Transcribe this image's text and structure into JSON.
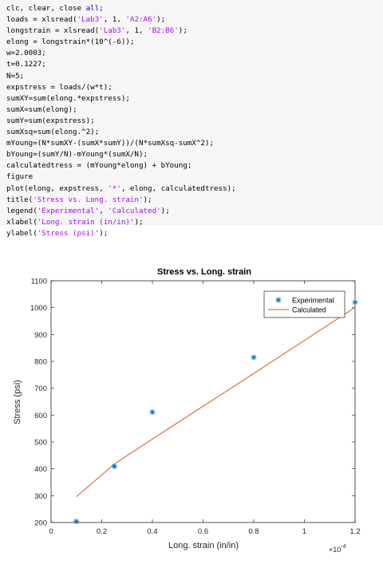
{
  "code": {
    "lines": [
      [
        {
          "t": "clc, clear, close "
        },
        {
          "t": "all",
          "c": "kw"
        },
        {
          "t": ";"
        }
      ],
      [
        {
          "t": "loads = xlsread("
        },
        {
          "t": "'Lab3'",
          "c": "str"
        },
        {
          "t": ", 1, "
        },
        {
          "t": "'A2:A6'",
          "c": "str"
        },
        {
          "t": ");"
        }
      ],
      [
        {
          "t": "longstrain = xlsread("
        },
        {
          "t": "'Lab3'",
          "c": "str"
        },
        {
          "t": ", 1, "
        },
        {
          "t": "'B2:B6'",
          "c": "str"
        },
        {
          "t": ");"
        }
      ],
      [
        {
          "t": "elong = longstrain*(10^(-6));"
        }
      ],
      [
        {
          "t": "w=2.0003;"
        }
      ],
      [
        {
          "t": "t=0.1227;"
        }
      ],
      [
        {
          "t": "N=5;"
        }
      ],
      [
        {
          "t": "expstress = loads/(w*t);"
        }
      ],
      [
        {
          "t": "sumXY=sum(elong.*expstress);"
        }
      ],
      [
        {
          "t": "sumX=sum(elong);"
        }
      ],
      [
        {
          "t": "sumY=sum(expstress);"
        }
      ],
      [
        {
          "t": "sumXsq=sum(elong.^2);"
        }
      ],
      [
        {
          "t": "mYoung=(N*sumXY-(sumX*sumY))/(N*sumXsq-sumX^2);"
        }
      ],
      [
        {
          "t": "bYoung=(sumY/N)-mYoung*(sumX/N);"
        }
      ],
      [
        {
          "t": "calculatedtress = (mYoung*elong) + bYoung;"
        }
      ],
      [
        {
          "t": "figure"
        }
      ],
      [
        {
          "t": "plot(elong, expstress, "
        },
        {
          "t": "'*'",
          "c": "str"
        },
        {
          "t": ", elong, calculatedtress);"
        }
      ],
      [
        {
          "t": "title("
        },
        {
          "t": "'Stress vs. Long. strain'",
          "c": "str"
        },
        {
          "t": ");"
        }
      ],
      [
        {
          "t": "legend("
        },
        {
          "t": "'Experimental'",
          "c": "str"
        },
        {
          "t": ", "
        },
        {
          "t": "'Calculated'",
          "c": "str"
        },
        {
          "t": ");"
        }
      ],
      [
        {
          "t": "xlabel("
        },
        {
          "t": "'Long. strain (in/in)'",
          "c": "str"
        },
        {
          "t": ");"
        }
      ],
      [
        {
          "t": "ylabel("
        },
        {
          "t": "'Stress (psi)'",
          "c": "str"
        },
        {
          "t": ");"
        }
      ]
    ],
    "colors": {
      "keyword": "#0000ff",
      "string": "#a709f5"
    }
  },
  "chart_data": {
    "type": "line",
    "title": "Stress vs. Long. strain",
    "xlabel": "Long. strain (in/in)",
    "ylabel": "Stress (psi)",
    "x_exponent_label": "×10",
    "x_exponent": "-4",
    "xlim": [
      0,
      0.00012
    ],
    "ylim": [
      200,
      1100
    ],
    "x_ticks": [
      0,
      2e-05,
      4e-05,
      6e-05,
      8e-05,
      0.0001,
      0.00012
    ],
    "x_tick_labels": [
      "0",
      "0.2",
      "0.4",
      "0.6",
      "0.8",
      "1",
      "1.2"
    ],
    "y_ticks": [
      200,
      300,
      400,
      500,
      600,
      700,
      800,
      900,
      1000,
      1100
    ],
    "y_tick_labels": [
      "200",
      "300",
      "400",
      "500",
      "600",
      "700",
      "800",
      "900",
      "1000",
      "1100"
    ],
    "grid": false,
    "legend_position": "top-right",
    "series": [
      {
        "name": "Experimental",
        "style": "markers",
        "marker": "*",
        "color": "#0072bd",
        "x": [
          1e-05,
          2.5e-05,
          4e-05,
          8e-05,
          0.00012
        ],
        "y": [
          204,
          409,
          611,
          815,
          1020
        ]
      },
      {
        "name": "Calculated",
        "style": "line",
        "color": "#d95319",
        "x": [
          1e-05,
          2.5e-05,
          4e-05,
          8e-05,
          0.00012
        ],
        "y": [
          296,
          418,
          511,
          755,
          1001
        ]
      }
    ]
  }
}
